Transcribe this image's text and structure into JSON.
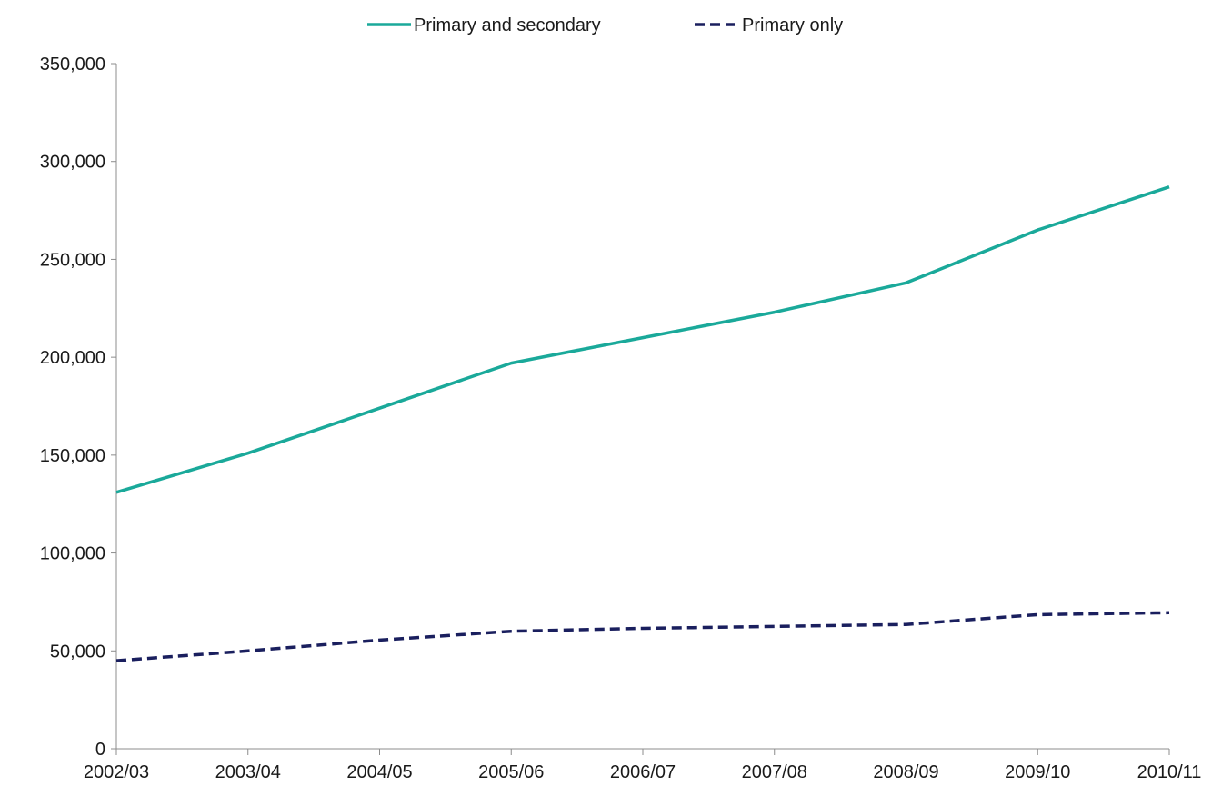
{
  "chart_data": {
    "type": "line",
    "title": "",
    "xlabel": "",
    "ylabel": "",
    "categories": [
      "2002/03",
      "2003/04",
      "2004/05",
      "2005/06",
      "2006/07",
      "2007/08",
      "2008/09",
      "2009/10",
      "2010/11"
    ],
    "ylim": [
      0,
      350000
    ],
    "yticks": [
      0,
      50000,
      100000,
      150000,
      200000,
      250000,
      300000,
      350000
    ],
    "ytick_labels": [
      "0",
      "50,000",
      "100,000",
      "150,000",
      "200,000",
      "250,000",
      "300,000",
      "350,000"
    ],
    "grid": false,
    "legend_position": "top-center",
    "series": [
      {
        "name": "Primary and secondary",
        "color": "#1aa99a",
        "style": "solid",
        "values": [
          131000,
          151000,
          174000,
          197000,
          210000,
          223000,
          238000,
          265000,
          287000
        ]
      },
      {
        "name": "Primary only",
        "color": "#1a1f5e",
        "style": "dashed",
        "values": [
          45000,
          50000,
          55500,
          60000,
          61500,
          62500,
          63500,
          68500,
          69500
        ]
      }
    ]
  }
}
